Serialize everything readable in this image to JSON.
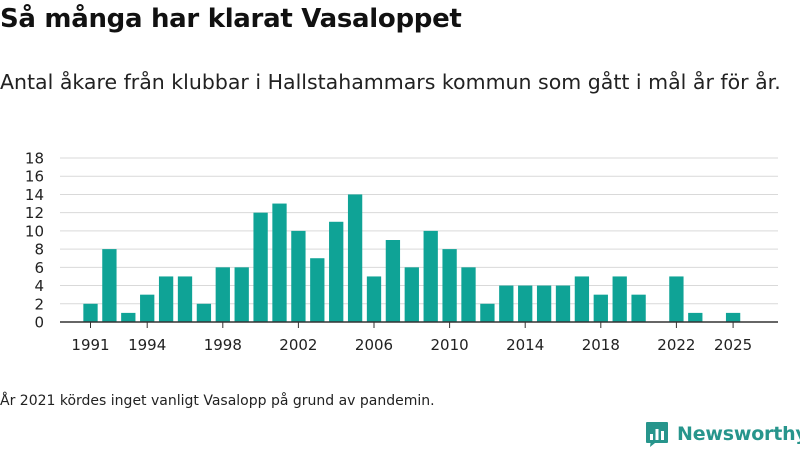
{
  "header": {
    "title": "Så många har klarat Vasaloppet",
    "subtitle": "Antal åkare från klubbar i Hallstahammars kommun som gått i mål år för år."
  },
  "footnote": "År 2021 kördes inget vanligt Vasalopp på grund av pandemin.",
  "brand": {
    "name": "Newsworthy",
    "icon": "bar-chart-speech-bubble-icon",
    "color": "#27958c"
  },
  "colors": {
    "bar": "#0fa396",
    "grid": "#d9d9d9",
    "axis": "#333333"
  },
  "chart_data": {
    "type": "bar",
    "title": "Så många har klarat Vasaloppet",
    "xlabel": "",
    "ylabel": "",
    "ylim": [
      0,
      18
    ],
    "yticks": [
      0,
      2,
      4,
      6,
      8,
      10,
      12,
      14,
      16,
      18
    ],
    "xticks": [
      "1991",
      "1994",
      "1998",
      "2002",
      "2006",
      "2010",
      "2014",
      "2018",
      "2022",
      "2025"
    ],
    "grid": true,
    "categories": [
      "1991",
      "1992",
      "1993",
      "1994",
      "1995",
      "1996",
      "1997",
      "1998",
      "1999",
      "2000",
      "2001",
      "2002",
      "2003",
      "2004",
      "2005",
      "2006",
      "2007",
      "2008",
      "2009",
      "2010",
      "2011",
      "2012",
      "2013",
      "2014",
      "2015",
      "2016",
      "2017",
      "2018",
      "2019",
      "2020",
      "2021",
      "2022",
      "2023",
      "2024",
      "2025"
    ],
    "values": [
      2,
      8,
      1,
      3,
      5,
      5,
      2,
      6,
      6,
      12,
      13,
      10,
      7,
      11,
      14,
      5,
      9,
      6,
      10,
      8,
      6,
      2,
      4,
      4,
      4,
      4,
      5,
      3,
      5,
      3,
      0,
      5,
      1,
      0,
      1
    ]
  }
}
